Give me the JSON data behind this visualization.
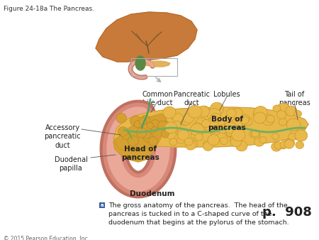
{
  "title": "Figure 24-18a The Pancreas.",
  "title_fontsize": 6.5,
  "title_color": "#333333",
  "bg_color": "#ffffff",
  "caption_text": "The gross anatomy of the pancreas.  The head of the\npancreas is tucked in to a C-shaped curve of the\nduodenum that begins at the pylorus of the stomach.",
  "caption_fontsize": 6.8,
  "page_number": "p.  908",
  "page_number_fontsize": 13,
  "copyright": "© 2015 Pearson Education, Inc.",
  "copyright_fontsize": 5.5,
  "caption_icon_color": "#3a5fa0",
  "liver_color": "#c87a3a",
  "liver_edge": "#b06828",
  "liver_duct_color": "#7a5a2a",
  "gallbladder_color": "#4a8a50",
  "pancreas_color": "#e8b84a",
  "pancreas_head_color": "#d4a030",
  "pancreas_edge": "#c89030",
  "lobule_color": "#c89828",
  "duodenum_outer": "#c07060",
  "duodenum_mid": "#d88878",
  "duodenum_inner": "#eaa898",
  "duct_color": "#5aaa60",
  "arrow_color": "#b0b0b0",
  "label_color": "#222222",
  "leader_color": "#555555"
}
